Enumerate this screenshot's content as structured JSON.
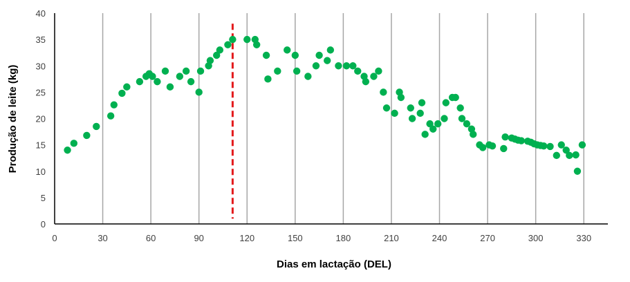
{
  "chart_data": {
    "type": "scatter",
    "title": "",
    "xlabel": "Dias em lactação (DEL)",
    "ylabel": "Produção de leite (kg)",
    "xlim": [
      0,
      345
    ],
    "ylim": [
      0,
      40
    ],
    "x_ticks": [
      0,
      30,
      60,
      90,
      120,
      150,
      180,
      210,
      240,
      270,
      300,
      330
    ],
    "y_ticks": [
      0,
      5,
      10,
      15,
      20,
      25,
      30,
      35,
      40
    ],
    "grid": {
      "vertical": true,
      "horizontal": false
    },
    "legend": null,
    "series": [
      {
        "name": "Produção de leite",
        "marker": "circle",
        "color": "#00b050",
        "points": [
          [
            8,
            14
          ],
          [
            12,
            15.3
          ],
          [
            20,
            16.8
          ],
          [
            26,
            18.5
          ],
          [
            35,
            20.5
          ],
          [
            37,
            22.6
          ],
          [
            42,
            24.8
          ],
          [
            45,
            26
          ],
          [
            53,
            27
          ],
          [
            57,
            28
          ],
          [
            59,
            28.5
          ],
          [
            61,
            28
          ],
          [
            64,
            27
          ],
          [
            69,
            29
          ],
          [
            72,
            26
          ],
          [
            78,
            28
          ],
          [
            82,
            29
          ],
          [
            85,
            27
          ],
          [
            90,
            25
          ],
          [
            91,
            29
          ],
          [
            96,
            30
          ],
          [
            97,
            31
          ],
          [
            101,
            32
          ],
          [
            103,
            33
          ],
          [
            108,
            34
          ],
          [
            111,
            35
          ],
          [
            120,
            35
          ],
          [
            125,
            35
          ],
          [
            126,
            34
          ],
          [
            132,
            32
          ],
          [
            133,
            27.5
          ],
          [
            139,
            29
          ],
          [
            145,
            33
          ],
          [
            150,
            32
          ],
          [
            151,
            29
          ],
          [
            158,
            28
          ],
          [
            163,
            30
          ],
          [
            165,
            32
          ],
          [
            170,
            31
          ],
          [
            172,
            33
          ],
          [
            177,
            30
          ],
          [
            182,
            30
          ],
          [
            186,
            30
          ],
          [
            189,
            29
          ],
          [
            193,
            28
          ],
          [
            194,
            27
          ],
          [
            199,
            28
          ],
          [
            202,
            29
          ],
          [
            205,
            25
          ],
          [
            207,
            22
          ],
          [
            212,
            21
          ],
          [
            215,
            25
          ],
          [
            216,
            24
          ],
          [
            222,
            22
          ],
          [
            223,
            20
          ],
          [
            228,
            21
          ],
          [
            229,
            23
          ],
          [
            231,
            17
          ],
          [
            234,
            19
          ],
          [
            236,
            18
          ],
          [
            239,
            19
          ],
          [
            243,
            20
          ],
          [
            244,
            23
          ],
          [
            248,
            24
          ],
          [
            250,
            24
          ],
          [
            253,
            22
          ],
          [
            254,
            20
          ],
          [
            257,
            19
          ],
          [
            260,
            18
          ],
          [
            261,
            17
          ],
          [
            265,
            15
          ],
          [
            267,
            14.5
          ],
          [
            271,
            15
          ],
          [
            273,
            14.8
          ],
          [
            280,
            14.3
          ],
          [
            281,
            16.5
          ],
          [
            285,
            16.3
          ],
          [
            287,
            16.1
          ],
          [
            289,
            15.9
          ],
          [
            291,
            15.8
          ],
          [
            295,
            15.7
          ],
          [
            297,
            15.5
          ],
          [
            299,
            15.2
          ],
          [
            301,
            15
          ],
          [
            303,
            14.9
          ],
          [
            305,
            14.8
          ],
          [
            309,
            14.7
          ],
          [
            313,
            13
          ],
          [
            316,
            15
          ],
          [
            319,
            14
          ],
          [
            321,
            13
          ],
          [
            325,
            13.1
          ],
          [
            326,
            10
          ],
          [
            329,
            15
          ]
        ]
      }
    ],
    "annotations": [
      {
        "type": "vertical-dashed-line",
        "x": 111,
        "y_from": 1,
        "y_to": 38,
        "color": "#e31a1c",
        "label": ""
      }
    ]
  },
  "axes": {
    "x_title": "Dias em lactação (DEL)",
    "y_title": "Produção de leite (kg)"
  }
}
